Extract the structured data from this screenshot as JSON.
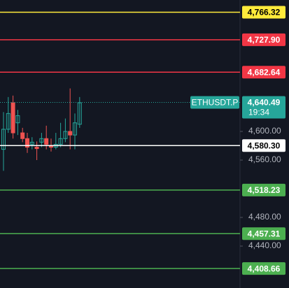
{
  "chart_data": {
    "type": "candlestick",
    "categories": [
      null,
      null,
      null,
      null,
      null,
      null,
      null,
      null,
      null,
      null,
      null,
      null,
      null,
      null,
      null,
      null,
      null
    ],
    "open": [
      4575,
      4603,
      4640,
      4612,
      4598,
      4590,
      4582,
      4578,
      4585,
      4590,
      4580,
      4578,
      4582,
      4590,
      4600,
      4595,
      4610
    ],
    "high": [
      4627,
      4648,
      4650,
      4630,
      4605,
      4598,
      4592,
      4586,
      4598,
      4608,
      4590,
      4598,
      4612,
      4618,
      4660,
      4625,
      4648
    ],
    "low": [
      4545,
      4598,
      4590,
      4595,
      4585,
      4570,
      4575,
      4560,
      4578,
      4575,
      4572,
      4575,
      4578,
      4585,
      4575,
      4575,
      4605
    ],
    "close": [
      4603,
      4625,
      4598,
      4622,
      4590,
      4578,
      4585,
      4576,
      4590,
      4582,
      4578,
      4582,
      4590,
      4600,
      4595,
      4612,
      4640
    ],
    "up_color": "#26a69a",
    "down_color": "#ef5350",
    "ylim": [
      4381.5,
      4783.4
    ],
    "yticks": [
      {
        "value": 4600,
        "label": "4,600.00"
      },
      {
        "value": 4560,
        "label": "4,560.00"
      },
      {
        "value": 4480,
        "label": "4,480.00"
      },
      {
        "value": 4440,
        "label": "4,440.00"
      }
    ],
    "price_lines": [
      {
        "value": 4766.32,
        "label": "4,766.32",
        "color": "#ffeb3b"
      },
      {
        "value": 4727.9,
        "label": "4,727.90",
        "color": "#f23645"
      },
      {
        "value": 4682.64,
        "label": "4,682.64",
        "color": "#f23645"
      },
      {
        "value": 4580.3,
        "label": "4,580.30",
        "color": "#ffffff"
      },
      {
        "value": 4518.23,
        "label": "4,518.23",
        "color": "#4caf50"
      },
      {
        "value": 4457.31,
        "label": "4,457.31",
        "color": "#4caf50"
      },
      {
        "value": 4408.66,
        "label": "4,408.66",
        "color": "#4caf50"
      }
    ],
    "current": {
      "value": 4640.49,
      "label": "4,640.49",
      "symbol": "ETHUSDT.P",
      "countdown": "19:34",
      "color": "#26a69a"
    }
  }
}
